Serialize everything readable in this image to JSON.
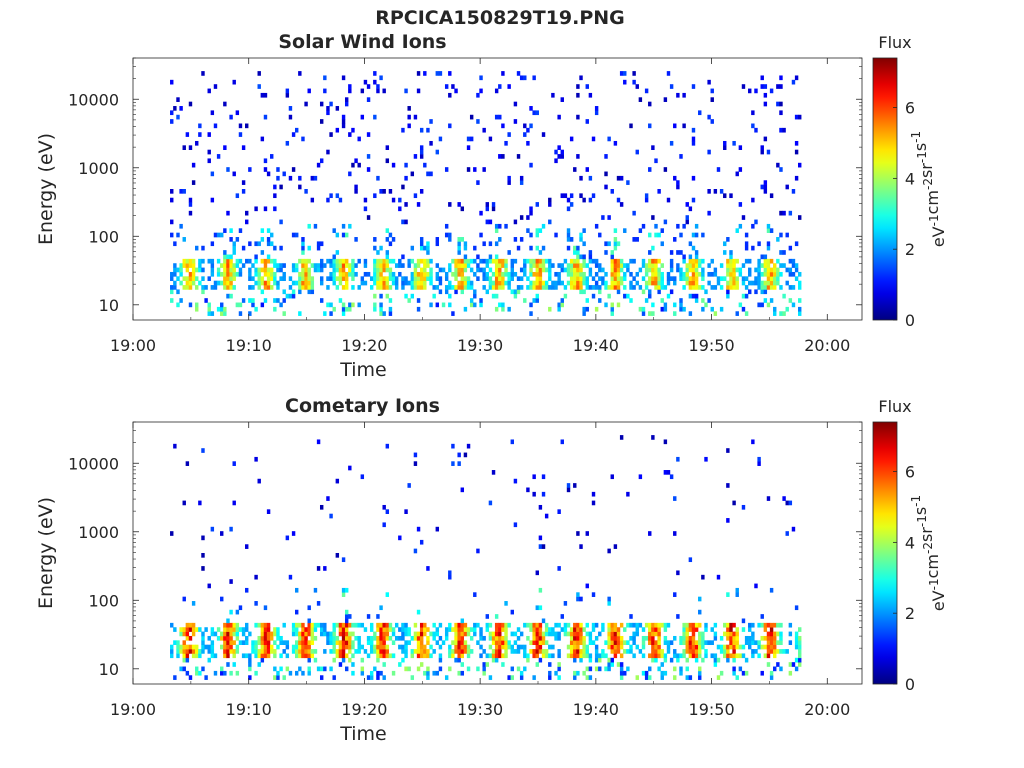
{
  "figure_title": "RPCICA150829T19.PNG",
  "chart_data": [
    {
      "type": "heatmap",
      "title": "Solar Wind Ions",
      "xlabel": "Time",
      "ylabel": "Energy (eV)",
      "x_ticks": [
        "19:00",
        "19:10",
        "19:20",
        "19:30",
        "19:40",
        "19:50",
        "20:00"
      ],
      "x_range_min": [
        0,
        63
      ],
      "y_ticks": [
        "10",
        "100",
        "1000",
        "10000"
      ],
      "y_tick_values": [
        10,
        100,
        1000,
        10000
      ],
      "y_scale": "log",
      "y_range_eV": [
        6,
        40000
      ],
      "data_time_range_min": [
        3.2,
        57.5
      ],
      "colorbar": {
        "label": "Flux",
        "unit_parts": [
          "eV",
          "-1",
          "cm",
          "-2",
          "sr",
          "-1",
          "s",
          "-1"
        ],
        "ticks": [
          "0",
          "2",
          "4",
          "6"
        ],
        "tick_values": [
          0,
          2,
          4,
          6
        ],
        "range": [
          0,
          7.4
        ],
        "colormap": "jet"
      },
      "band_energy_eV": [
        18,
        45
      ],
      "band_peak_flux": 6.0,
      "scatter_density": 0.055,
      "seed": 11
    },
    {
      "type": "heatmap",
      "title": "Cometary Ions",
      "xlabel": "Time",
      "ylabel": "Energy (eV)",
      "x_ticks": [
        "19:00",
        "19:10",
        "19:20",
        "19:30",
        "19:40",
        "19:50",
        "20:00"
      ],
      "x_range_min": [
        0,
        63
      ],
      "y_ticks": [
        "10",
        "100",
        "1000",
        "10000"
      ],
      "y_tick_values": [
        10,
        100,
        1000,
        10000
      ],
      "y_scale": "log",
      "y_range_eV": [
        6,
        40000
      ],
      "data_time_range_min": [
        3.2,
        57.5
      ],
      "colorbar": {
        "label": "Flux",
        "unit_parts": [
          "eV",
          "-1",
          "cm",
          "-2",
          "sr",
          "-1",
          "s",
          "-1"
        ],
        "ticks": [
          "0",
          "2",
          "4",
          "6"
        ],
        "tick_values": [
          0,
          2,
          4,
          6
        ],
        "range": [
          0,
          7.4
        ],
        "colormap": "jet"
      },
      "band_energy_eV": [
        15,
        50
      ],
      "band_peak_flux": 7.2,
      "scatter_density": 0.018,
      "seed": 29
    }
  ]
}
